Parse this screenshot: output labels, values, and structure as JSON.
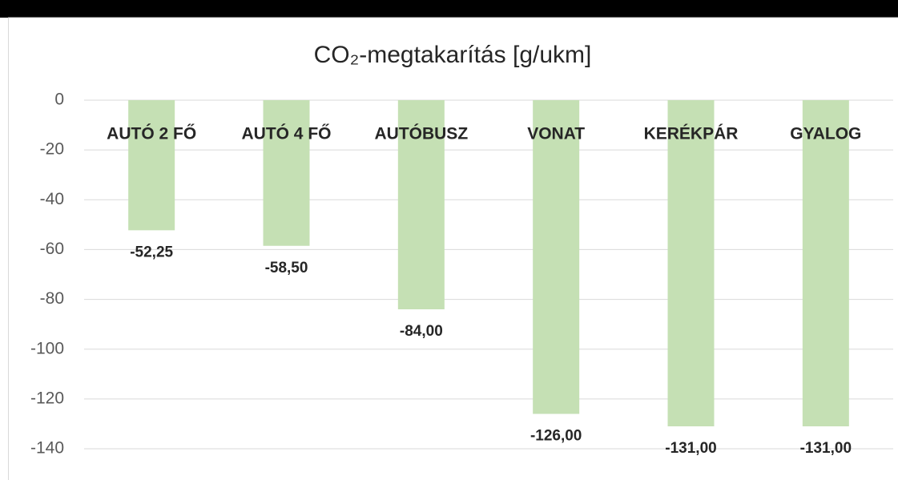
{
  "chart_data": {
    "type": "bar",
    "title": "CO₂-megtakarítás [g/ukm]",
    "categories": [
      "AUTÓ 2 FŐ",
      "AUTÓ 4 FŐ",
      "AUTÓBUSZ",
      "VONAT",
      "KERÉKPÁR",
      "GYALOG"
    ],
    "values": [
      -52.25,
      -58.5,
      -84,
      -126,
      -131,
      -131
    ],
    "value_labels": [
      "-52,25",
      "-58,50",
      "-84,00",
      "-126,00",
      "-131,00",
      "-131,00"
    ],
    "color": "#c5e0b4",
    "ylim": [
      -140,
      0
    ],
    "yticks": [
      0,
      -20,
      -40,
      -60,
      -80,
      -100,
      -120,
      -140
    ],
    "grid": true
  }
}
